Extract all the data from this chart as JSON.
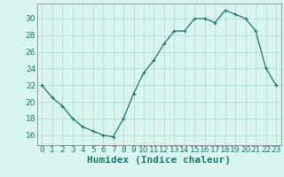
{
  "x": [
    0,
    1,
    2,
    3,
    4,
    5,
    6,
    7,
    8,
    9,
    10,
    11,
    12,
    13,
    14,
    15,
    16,
    17,
    18,
    19,
    20,
    21,
    22,
    23
  ],
  "y": [
    22,
    20.5,
    19.5,
    18,
    17,
    16.5,
    16,
    15.8,
    18,
    21,
    23.5,
    25,
    27,
    28.5,
    28.5,
    30,
    30,
    29.5,
    31,
    30.5,
    30,
    28.5,
    24,
    22
  ],
  "line_color": "#1a7a6e",
  "marker": "+",
  "marker_size": 3,
  "marker_lw": 0.8,
  "line_width": 0.9,
  "bg_color": "#d8f5f0",
  "grid_color": "#b0d8d4",
  "grid_lw": 0.5,
  "xlabel": "Humidex (Indice chaleur)",
  "xlim": [
    -0.5,
    23.5
  ],
  "ylim": [
    14.8,
    31.8
  ],
  "yticks": [
    16,
    18,
    20,
    22,
    24,
    26,
    28,
    30
  ],
  "xticks": [
    0,
    1,
    2,
    3,
    4,
    5,
    6,
    7,
    8,
    9,
    10,
    11,
    12,
    13,
    14,
    15,
    16,
    17,
    18,
    19,
    20,
    21,
    22,
    23
  ],
  "tick_label_fontsize": 6.5,
  "xlabel_fontsize": 8,
  "spine_color": "#888888",
  "tick_color": "#1a7a6e"
}
